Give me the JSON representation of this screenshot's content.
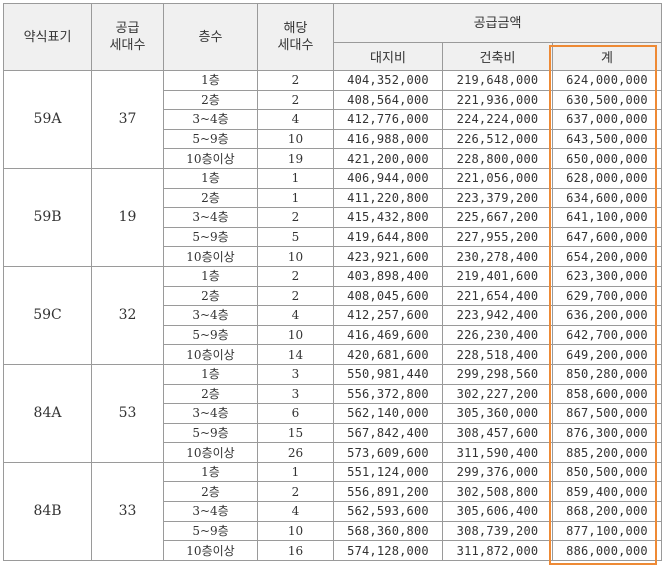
{
  "header": {
    "type_label": "약식표기",
    "supply_units_label": "공급\n세대수",
    "floor_label": "층수",
    "floor_units_label": "해당\n세대수",
    "price_group_label": "공급금액",
    "land_label": "대지비",
    "building_label": "건축비",
    "total_label": "계"
  },
  "highlight": {
    "color": "#ee8a35",
    "column": "total"
  },
  "groups": [
    {
      "type": "59A",
      "units": "37",
      "rows": [
        {
          "floor": "1층",
          "count": "2",
          "land": "404,352,000",
          "building": "219,648,000",
          "total": "624,000,000"
        },
        {
          "floor": "2층",
          "count": "2",
          "land": "408,564,000",
          "building": "221,936,000",
          "total": "630,500,000"
        },
        {
          "floor": "3~4층",
          "count": "4",
          "land": "412,776,000",
          "building": "224,224,000",
          "total": "637,000,000"
        },
        {
          "floor": "5~9층",
          "count": "10",
          "land": "416,988,000",
          "building": "226,512,000",
          "total": "643,500,000"
        },
        {
          "floor": "10층이상",
          "count": "19",
          "land": "421,200,000",
          "building": "228,800,000",
          "total": "650,000,000"
        }
      ]
    },
    {
      "type": "59B",
      "units": "19",
      "rows": [
        {
          "floor": "1층",
          "count": "1",
          "land": "406,944,000",
          "building": "221,056,000",
          "total": "628,000,000"
        },
        {
          "floor": "2층",
          "count": "1",
          "land": "411,220,800",
          "building": "223,379,200",
          "total": "634,600,000"
        },
        {
          "floor": "3~4층",
          "count": "2",
          "land": "415,432,800",
          "building": "225,667,200",
          "total": "641,100,000"
        },
        {
          "floor": "5~9층",
          "count": "5",
          "land": "419,644,800",
          "building": "227,955,200",
          "total": "647,600,000"
        },
        {
          "floor": "10층이상",
          "count": "10",
          "land": "423,921,600",
          "building": "230,278,400",
          "total": "654,200,000"
        }
      ]
    },
    {
      "type": "59C",
      "units": "32",
      "rows": [
        {
          "floor": "1층",
          "count": "2",
          "land": "403,898,400",
          "building": "219,401,600",
          "total": "623,300,000"
        },
        {
          "floor": "2층",
          "count": "2",
          "land": "408,045,600",
          "building": "221,654,400",
          "total": "629,700,000"
        },
        {
          "floor": "3~4층",
          "count": "4",
          "land": "412,257,600",
          "building": "223,942,400",
          "total": "636,200,000"
        },
        {
          "floor": "5~9층",
          "count": "10",
          "land": "416,469,600",
          "building": "226,230,400",
          "total": "642,700,000"
        },
        {
          "floor": "10층이상",
          "count": "14",
          "land": "420,681,600",
          "building": "228,518,400",
          "total": "649,200,000"
        }
      ]
    },
    {
      "type": "84A",
      "units": "53",
      "rows": [
        {
          "floor": "1층",
          "count": "3",
          "land": "550,981,440",
          "building": "299,298,560",
          "total": "850,280,000"
        },
        {
          "floor": "2층",
          "count": "3",
          "land": "556,372,800",
          "building": "302,227,200",
          "total": "858,600,000"
        },
        {
          "floor": "3~4층",
          "count": "6",
          "land": "562,140,000",
          "building": "305,360,000",
          "total": "867,500,000"
        },
        {
          "floor": "5~9층",
          "count": "15",
          "land": "567,842,400",
          "building": "308,457,600",
          "total": "876,300,000"
        },
        {
          "floor": "10층이상",
          "count": "26",
          "land": "573,609,600",
          "building": "311,590,400",
          "total": "885,200,000"
        }
      ]
    },
    {
      "type": "84B",
      "units": "33",
      "rows": [
        {
          "floor": "1층",
          "count": "1",
          "land": "551,124,000",
          "building": "299,376,000",
          "total": "850,500,000"
        },
        {
          "floor": "2층",
          "count": "2",
          "land": "556,891,200",
          "building": "302,508,800",
          "total": "859,400,000"
        },
        {
          "floor": "3~4층",
          "count": "4",
          "land": "562,593,600",
          "building": "305,606,400",
          "total": "868,200,000"
        },
        {
          "floor": "5~9층",
          "count": "10",
          "land": "568,360,800",
          "building": "308,739,200",
          "total": "877,100,000"
        },
        {
          "floor": "10층이상",
          "count": "16",
          "land": "574,128,000",
          "building": "311,872,000",
          "total": "886,000,000"
        }
      ]
    }
  ]
}
